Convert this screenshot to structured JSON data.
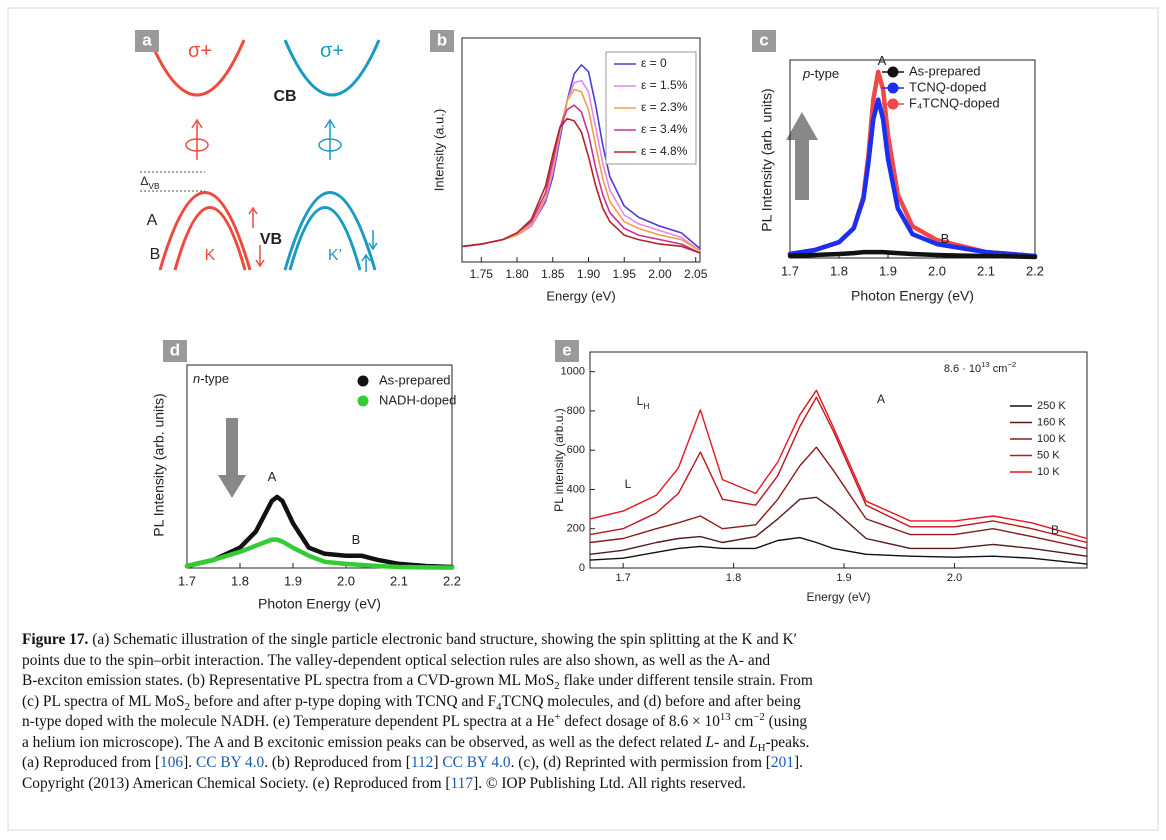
{
  "figure": {
    "diagram": {
      "panel_label": "a",
      "labels": [
        [
          {
            "text": "σ+"
          }
        ],
        [
          {
            "text": "σ+"
          }
        ],
        [
          {
            "text": "CB"
          }
        ],
        [
          {
            "text": "Δ"
          },
          {
            "text": "VB",
            "style": "sub"
          }
        ],
        [
          {
            "text": "A"
          }
        ],
        [
          {
            "text": "B"
          }
        ],
        [
          {
            "text": "K"
          }
        ],
        [
          {
            "text": "VB"
          }
        ],
        [
          {
            "text": "K’"
          }
        ]
      ]
    },
    "caption": {
      "lines": [
        [
          {
            "text": "Figure 17.",
            "style": "bold"
          },
          {
            "text": " (a) Schematic illustration of the single particle electronic band structure, showing the spin splitting at the K and K′"
          }
        ],
        [
          {
            "text": "points due to the spin–orbit interaction. The valley-dependent optical selection rules are also shown, as well as the A- and"
          }
        ],
        [
          {
            "text": "B-exciton emission states. (b) Representative PL spectra from a CVD-grown ML MoS"
          },
          {
            "text": "2",
            "style": "sub"
          },
          {
            "text": " flake under different tensile strain. From"
          }
        ],
        [
          {
            "text": "(c) PL spectra of ML MoS"
          },
          {
            "text": "2",
            "style": "sub"
          },
          {
            "text": " before and after p-type doping with TCNQ and F"
          },
          {
            "text": "4",
            "style": "sub"
          },
          {
            "text": "TCNQ molecules, and (d) before and after being"
          }
        ],
        [
          {
            "text": "n-type doped with the molecule NADH. (e) Temperature dependent PL spectra at a He"
          },
          {
            "text": "+",
            "style": "sup"
          },
          {
            "text": " defect dosage of 8.6 × 10"
          },
          {
            "text": "13",
            "style": "sup"
          },
          {
            "text": " cm"
          },
          {
            "text": "−2",
            "style": "sup"
          },
          {
            "text": " (using"
          }
        ],
        [
          {
            "text": "a helium ion microscope). The A and B excitonic emission peaks can be observed, as well as the defect related "
          },
          {
            "text": "L",
            "style": "italic"
          },
          {
            "text": "- and "
          },
          {
            "text": "L",
            "style": "italic"
          },
          {
            "text": "H",
            "style": "sub"
          },
          {
            "text": "-peaks."
          }
        ],
        [
          {
            "text": "(a) Reproduced from ["
          },
          {
            "text": "106",
            "style": "link"
          },
          {
            "text": "]. "
          },
          {
            "text": "CC BY 4.0",
            "style": "link"
          },
          {
            "text": ". (b) Reproduced from ["
          },
          {
            "text": "112",
            "style": "link"
          },
          {
            "text": "] "
          },
          {
            "text": "CC BY 4.0",
            "style": "link"
          },
          {
            "text": ". (c), (d) Reprinted with permission from ["
          },
          {
            "text": "201",
            "style": "link"
          },
          {
            "text": "]."
          }
        ],
        [
          {
            "text": "Copyright (2013) American Chemical Society. (e) Reproduced from ["
          },
          {
            "text": "117",
            "style": "link"
          },
          {
            "text": "]. © IOP Publishing Ltd. All rights reserved."
          }
        ]
      ]
    }
  },
  "chart_data": [
    {
      "type": "line",
      "panel_label": "b",
      "xlabel": "Energy (eV)",
      "ylabel": "Intensity (a.u.)",
      "xlim": [
        1.723,
        2.056
      ],
      "ylim": [
        0,
        1
      ],
      "xticks": [
        1.75,
        {
          "value": 1.8,
          "label": "1.80"
        },
        1.85,
        {
          "value": 1.9,
          "label": "1.90"
        },
        1.95,
        {
          "value": 2,
          "label": "2.00"
        },
        2.05
      ],
      "x": [
        1.725,
        1.75,
        1.78,
        1.8,
        1.82,
        1.84,
        1.85,
        1.86,
        1.87,
        1.88,
        1.89,
        1.9,
        1.91,
        1.92,
        1.93,
        1.95,
        1.97,
        2.0,
        2.03,
        2.056
      ],
      "series": [
        {
          "name": "ε = 0",
          "color": "#4a3fd6",
          "values": [
            0.07,
            0.08,
            0.1,
            0.12,
            0.16,
            0.27,
            0.38,
            0.55,
            0.72,
            0.84,
            0.88,
            0.85,
            0.7,
            0.52,
            0.38,
            0.25,
            0.2,
            0.16,
            0.13,
            0.06
          ]
        },
        {
          "name": "ε = 1.5%",
          "color": "#ea86ea",
          "values": [
            0.07,
            0.08,
            0.1,
            0.12,
            0.16,
            0.28,
            0.4,
            0.57,
            0.72,
            0.8,
            0.81,
            0.76,
            0.6,
            0.44,
            0.32,
            0.21,
            0.17,
            0.14,
            0.11,
            0.05
          ]
        },
        {
          "name": "ε = 2.3%",
          "color": "#f0a040",
          "values": [
            0.07,
            0.08,
            0.1,
            0.12,
            0.17,
            0.29,
            0.42,
            0.59,
            0.72,
            0.77,
            0.76,
            0.68,
            0.52,
            0.37,
            0.27,
            0.18,
            0.15,
            0.12,
            0.1,
            0.05
          ]
        },
        {
          "name": "ε = 3.4%",
          "color": "#c8329c",
          "values": [
            0.07,
            0.08,
            0.1,
            0.13,
            0.18,
            0.31,
            0.45,
            0.6,
            0.68,
            0.7,
            0.67,
            0.57,
            0.42,
            0.3,
            0.22,
            0.15,
            0.12,
            0.1,
            0.08,
            0.04
          ]
        },
        {
          "name": "ε = 4.8%",
          "color": "#b8202c",
          "values": [
            0.07,
            0.08,
            0.1,
            0.13,
            0.19,
            0.34,
            0.48,
            0.6,
            0.64,
            0.63,
            0.58,
            0.47,
            0.34,
            0.24,
            0.18,
            0.12,
            0.1,
            0.08,
            0.07,
            0.04
          ]
        }
      ],
      "annotations": []
    },
    {
      "type": "line",
      "panel_label": "c",
      "xlabel": "Photon Energy (eV)",
      "ylabel": "PL Intensity (arb. units)",
      "xlim": [
        1.7,
        2.2
      ],
      "ylim": [
        0,
        1
      ],
      "xticks": [
        1.7,
        1.8,
        1.9,
        {
          "value": 2,
          "label": "2.0"
        },
        2.1,
        2.2
      ],
      "x": [
        1.7,
        1.75,
        1.8,
        1.83,
        1.85,
        1.86,
        1.87,
        1.88,
        1.89,
        1.9,
        1.92,
        1.95,
        2.0,
        2.05,
        2.1,
        2.15,
        2.2
      ],
      "series": [
        {
          "name": "As-prepared",
          "color": "#111111",
          "values": [
            0.01,
            0.015,
            0.02,
            0.025,
            0.03,
            0.03,
            0.03,
            0.03,
            0.03,
            0.028,
            0.025,
            0.02,
            0.015,
            0.012,
            0.01,
            0.008,
            0.005
          ]
        },
        {
          "name": "TCNQ-doped",
          "color": "#1a2ff0",
          "values": [
            0.02,
            0.04,
            0.08,
            0.15,
            0.3,
            0.48,
            0.7,
            0.8,
            0.7,
            0.5,
            0.25,
            0.12,
            0.07,
            0.05,
            0.03,
            0.02,
            0.01
          ]
        },
        {
          "name": "F₄TCNQ-doped",
          "color": "#f04848",
          "values": [
            0.02,
            0.04,
            0.08,
            0.15,
            0.31,
            0.52,
            0.8,
            0.94,
            0.85,
            0.62,
            0.32,
            0.16,
            0.09,
            0.06,
            0.03,
            0.02,
            0.01
          ]
        }
      ],
      "annotations": [
        [
          {
            "text": "p",
            "style": "italic"
          },
          {
            "text": "-type"
          }
        ],
        [
          {
            "text": "A"
          }
        ],
        [
          {
            "text": "B"
          }
        ]
      ]
    },
    {
      "type": "line",
      "panel_label": "d",
      "xlabel": "Photon Energy (eV)",
      "ylabel": "PL Intensity (arb. units)",
      "xlim": [
        1.7,
        2.2
      ],
      "ylim": [
        0,
        1
      ],
      "xticks": [
        1.7,
        1.8,
        1.9,
        {
          "value": 2,
          "label": "2.0"
        },
        2.1,
        2.2
      ],
      "x": [
        1.7,
        1.75,
        1.8,
        1.83,
        1.85,
        1.86,
        1.87,
        1.88,
        1.9,
        1.93,
        1.96,
        2.0,
        2.03,
        2.06,
        2.1,
        2.15,
        2.2
      ],
      "series": [
        {
          "name": "As-prepared",
          "color": "#111111",
          "values": [
            0.01,
            0.04,
            0.1,
            0.18,
            0.28,
            0.33,
            0.35,
            0.33,
            0.22,
            0.1,
            0.07,
            0.06,
            0.06,
            0.04,
            0.02,
            0.01,
            0.005
          ]
        },
        {
          "name": "NADH-doped",
          "color": "#33cc33",
          "values": [
            0.01,
            0.04,
            0.08,
            0.11,
            0.13,
            0.14,
            0.14,
            0.13,
            0.1,
            0.06,
            0.03,
            0.02,
            0.015,
            0.01,
            0.005,
            0.003,
            0.002
          ]
        }
      ],
      "annotations": [
        [
          {
            "text": "n",
            "style": "italic"
          },
          {
            "text": "-type"
          }
        ],
        [
          {
            "text": "A"
          }
        ],
        [
          {
            "text": "B"
          }
        ]
      ]
    },
    {
      "type": "line",
      "panel_label": "e",
      "xlabel": "Energy (eV)",
      "ylabel": "PL intensity (arb.u.)",
      "xlim": [
        1.67,
        2.12
      ],
      "ylim": [
        0,
        1100
      ],
      "xticks": [
        1.7,
        1.8,
        1.9,
        {
          "value": 2,
          "label": "2.0"
        }
      ],
      "yticks": [
        0,
        200,
        400,
        600,
        800,
        1000
      ],
      "x": [
        1.67,
        1.7,
        1.73,
        1.75,
        1.77,
        1.79,
        1.82,
        1.84,
        1.86,
        1.875,
        1.89,
        1.92,
        1.96,
        2.0,
        2.035,
        2.07,
        2.12
      ],
      "series": [
        {
          "name": "250 K",
          "color": "#111111",
          "values": [
            40,
            50,
            80,
            100,
            110,
            100,
            100,
            140,
            155,
            130,
            100,
            70,
            60,
            55,
            60,
            50,
            20
          ]
        },
        {
          "name": "160 K",
          "color": "#5a1a1a",
          "values": [
            70,
            90,
            130,
            150,
            160,
            130,
            160,
            250,
            350,
            360,
            300,
            150,
            100,
            100,
            120,
            100,
            60
          ]
        },
        {
          "name": "100 K",
          "color": "#8b1a1a",
          "values": [
            130,
            150,
            200,
            230,
            265,
            200,
            220,
            350,
            520,
            615,
            500,
            250,
            170,
            170,
            200,
            160,
            100
          ]
        },
        {
          "name": "50 K",
          "color": "#c0141e",
          "values": [
            170,
            200,
            280,
            380,
            590,
            350,
            320,
            470,
            720,
            870,
            700,
            320,
            210,
            210,
            240,
            200,
            130
          ]
        },
        {
          "name": "10 K",
          "color": "#e8141e",
          "values": [
            250,
            290,
            370,
            510,
            805,
            450,
            380,
            540,
            780,
            905,
            720,
            340,
            240,
            240,
            265,
            230,
            150
          ]
        }
      ],
      "annotations": [
        [
          {
            "text": "L"
          },
          {
            "text": "H",
            "style": "sub"
          }
        ],
        [
          {
            "text": "A"
          }
        ],
        [
          {
            "text": "L"
          }
        ],
        [
          {
            "text": "B"
          }
        ],
        [
          {
            "text": "8.6 · 10"
          },
          {
            "text": "13",
            "style": "sup"
          },
          {
            "text": " cm"
          },
          {
            "text": "−2",
            "style": "sup"
          }
        ]
      ]
    }
  ]
}
